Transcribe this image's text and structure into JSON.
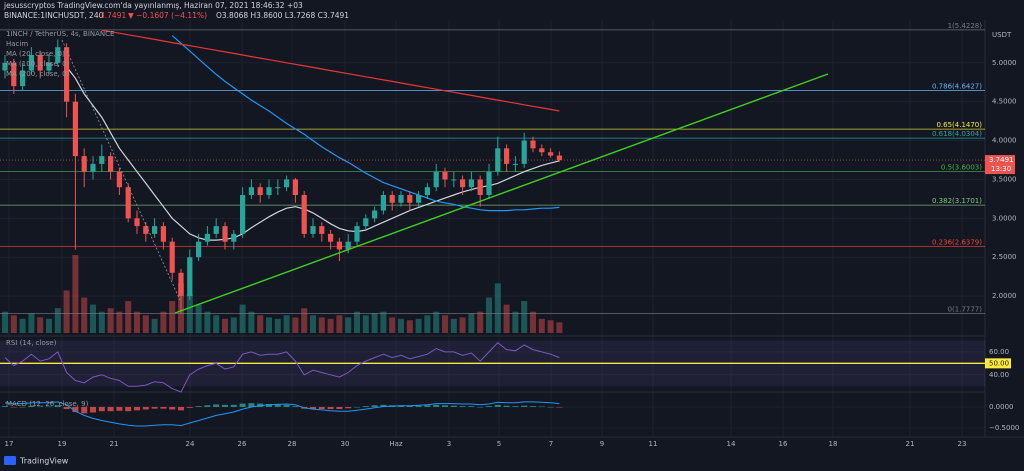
{
  "header": {
    "author_line": "jesusscryptos TradingView.com'da yayınlanmış, Haziran 07, 2021 18:46:32 +03",
    "symbol_line": "BINANCE:1INCHUSDT, 240",
    "last": "3.7491",
    "change": "▼ −0.1607 (−4.11%)",
    "ohlc": "O3.8068 H3.8600 L3.7268 C3.7491"
  },
  "legend": [
    "1INCH / TetherUS, 4s, BINANCE",
    "Hacim",
    "MA (20, close, 0)",
    "MA (100, close, 0)",
    "MA (200, close, 0)"
  ],
  "footer": "TradingView",
  "chart_data": {
    "type": "candlestick",
    "currency": "USDT",
    "ylim": [
      1.5,
      5.55
    ],
    "yticks": [
      {
        "value": 5,
        "label": "5.0000"
      },
      {
        "value": 4.5,
        "label": "4.5000"
      },
      {
        "value": 4,
        "label": "4.0000"
      },
      {
        "value": 3.5,
        "label": "3.5000"
      },
      {
        "value": 3,
        "label": "3.0000"
      },
      {
        "value": 2.5,
        "label": "2.5000"
      },
      {
        "value": 2,
        "label": "2.0000"
      }
    ],
    "xtick_labels": [
      "17",
      "19",
      "21",
      "24",
      "26",
      "28",
      "30",
      "Haz",
      "3",
      "5",
      "7",
      "9",
      "11",
      "14",
      "16",
      "18",
      "21",
      "23"
    ],
    "up_color": "#26a69a",
    "down_color": "#ef5350",
    "candles": [
      {
        "o": 4.9,
        "h": 5.1,
        "l": 4.8,
        "c": 5.0
      },
      {
        "o": 5.0,
        "h": 5.05,
        "l": 4.6,
        "c": 4.7
      },
      {
        "o": 4.7,
        "h": 5.0,
        "l": 4.65,
        "c": 4.9
      },
      {
        "o": 4.9,
        "h": 5.2,
        "l": 4.85,
        "c": 5.1
      },
      {
        "o": 5.1,
        "h": 5.15,
        "l": 4.8,
        "c": 4.9
      },
      {
        "o": 4.9,
        "h": 5.1,
        "l": 4.85,
        "c": 5.0
      },
      {
        "o": 5.0,
        "h": 5.3,
        "l": 4.95,
        "c": 5.2
      },
      {
        "o": 5.2,
        "h": 5.25,
        "l": 4.3,
        "c": 4.5
      },
      {
        "o": 4.5,
        "h": 4.6,
        "l": 2.6,
        "c": 3.8
      },
      {
        "o": 3.8,
        "h": 3.9,
        "l": 3.4,
        "c": 3.6
      },
      {
        "o": 3.6,
        "h": 3.8,
        "l": 3.5,
        "c": 3.7
      },
      {
        "o": 3.7,
        "h": 3.95,
        "l": 3.6,
        "c": 3.8
      },
      {
        "o": 3.8,
        "h": 3.85,
        "l": 3.5,
        "c": 3.6
      },
      {
        "o": 3.6,
        "h": 3.65,
        "l": 3.3,
        "c": 3.4
      },
      {
        "o": 3.4,
        "h": 3.45,
        "l": 2.95,
        "c": 3.0
      },
      {
        "o": 3.0,
        "h": 3.1,
        "l": 2.8,
        "c": 2.9
      },
      {
        "o": 2.9,
        "h": 2.95,
        "l": 2.7,
        "c": 2.8
      },
      {
        "o": 2.8,
        "h": 3.0,
        "l": 2.75,
        "c": 2.9
      },
      {
        "o": 2.9,
        "h": 2.95,
        "l": 2.6,
        "c": 2.7
      },
      {
        "o": 2.7,
        "h": 2.75,
        "l": 2.2,
        "c": 2.3
      },
      {
        "o": 2.3,
        "h": 2.35,
        "l": 1.78,
        "c": 2.0
      },
      {
        "o": 2.0,
        "h": 2.6,
        "l": 1.95,
        "c": 2.5
      },
      {
        "o": 2.5,
        "h": 2.8,
        "l": 2.45,
        "c": 2.7
      },
      {
        "o": 2.7,
        "h": 2.9,
        "l": 2.65,
        "c": 2.8
      },
      {
        "o": 2.8,
        "h": 3.0,
        "l": 2.75,
        "c": 2.9
      },
      {
        "o": 2.9,
        "h": 2.95,
        "l": 2.6,
        "c": 2.7
      },
      {
        "o": 2.7,
        "h": 2.85,
        "l": 2.6,
        "c": 2.8
      },
      {
        "o": 2.8,
        "h": 3.4,
        "l": 2.75,
        "c": 3.3
      },
      {
        "o": 3.3,
        "h": 3.5,
        "l": 3.25,
        "c": 3.4
      },
      {
        "o": 3.4,
        "h": 3.45,
        "l": 3.2,
        "c": 3.3
      },
      {
        "o": 3.3,
        "h": 3.5,
        "l": 3.25,
        "c": 3.4
      },
      {
        "o": 3.4,
        "h": 3.5,
        "l": 3.3,
        "c": 3.4
      },
      {
        "o": 3.4,
        "h": 3.55,
        "l": 3.35,
        "c": 3.5
      },
      {
        "o": 3.5,
        "h": 3.52,
        "l": 3.2,
        "c": 3.3
      },
      {
        "o": 3.3,
        "h": 3.35,
        "l": 2.75,
        "c": 2.8
      },
      {
        "o": 2.8,
        "h": 3.0,
        "l": 2.75,
        "c": 2.9
      },
      {
        "o": 2.9,
        "h": 2.95,
        "l": 2.7,
        "c": 2.8
      },
      {
        "o": 2.8,
        "h": 2.85,
        "l": 2.6,
        "c": 2.7
      },
      {
        "o": 2.7,
        "h": 2.75,
        "l": 2.45,
        "c": 2.6
      },
      {
        "o": 2.6,
        "h": 2.8,
        "l": 2.55,
        "c": 2.7
      },
      {
        "o": 2.7,
        "h": 2.95,
        "l": 2.65,
        "c": 2.9
      },
      {
        "o": 2.9,
        "h": 3.05,
        "l": 2.85,
        "c": 3.0
      },
      {
        "o": 3.0,
        "h": 3.15,
        "l": 2.95,
        "c": 3.1
      },
      {
        "o": 3.1,
        "h": 3.35,
        "l": 3.05,
        "c": 3.3
      },
      {
        "o": 3.3,
        "h": 3.35,
        "l": 3.1,
        "c": 3.2
      },
      {
        "o": 3.2,
        "h": 3.35,
        "l": 3.15,
        "c": 3.3
      },
      {
        "o": 3.3,
        "h": 3.35,
        "l": 3.1,
        "c": 3.2
      },
      {
        "o": 3.2,
        "h": 3.35,
        "l": 3.15,
        "c": 3.3
      },
      {
        "o": 3.3,
        "h": 3.45,
        "l": 3.25,
        "c": 3.4
      },
      {
        "o": 3.4,
        "h": 3.7,
        "l": 3.35,
        "c": 3.6
      },
      {
        "o": 3.6,
        "h": 3.65,
        "l": 3.4,
        "c": 3.5
      },
      {
        "o": 3.5,
        "h": 3.6,
        "l": 3.4,
        "c": 3.5
      },
      {
        "o": 3.5,
        "h": 3.55,
        "l": 3.3,
        "c": 3.4
      },
      {
        "o": 3.4,
        "h": 3.6,
        "l": 3.35,
        "c": 3.5
      },
      {
        "o": 3.5,
        "h": 3.55,
        "l": 3.15,
        "c": 3.3
      },
      {
        "o": 3.3,
        "h": 3.7,
        "l": 3.25,
        "c": 3.6
      },
      {
        "o": 3.6,
        "h": 4.05,
        "l": 3.55,
        "c": 3.9
      },
      {
        "o": 3.9,
        "h": 3.95,
        "l": 3.6,
        "c": 3.7
      },
      {
        "o": 3.7,
        "h": 3.8,
        "l": 3.6,
        "c": 3.7
      },
      {
        "o": 3.7,
        "h": 4.1,
        "l": 3.65,
        "c": 4.0
      },
      {
        "o": 4.0,
        "h": 4.05,
        "l": 3.85,
        "c": 3.9
      },
      {
        "o": 3.9,
        "h": 3.95,
        "l": 3.8,
        "c": 3.85
      },
      {
        "o": 3.85,
        "h": 3.9,
        "l": 3.78,
        "c": 3.8068
      },
      {
        "o": 3.8068,
        "h": 3.86,
        "l": 3.7268,
        "c": 3.7491
      }
    ],
    "volume": [
      30,
      25,
      20,
      28,
      22,
      20,
      35,
      60,
      110,
      50,
      40,
      30,
      35,
      30,
      45,
      30,
      25,
      20,
      30,
      45,
      70,
      55,
      40,
      30,
      25,
      20,
      22,
      40,
      30,
      25,
      22,
      20,
      25,
      22,
      35,
      25,
      22,
      20,
      25,
      22,
      30,
      25,
      28,
      30,
      22,
      20,
      18,
      20,
      25,
      30,
      25,
      20,
      22,
      28,
      30,
      50,
      70,
      40,
      30,
      45,
      30,
      20,
      18,
      15
    ],
    "moving_averages": [
      {
        "name": "MA (20, close, 0)",
        "color": "#d1d4dc",
        "values": [
          null,
          null,
          null,
          null,
          null,
          null,
          null,
          4.95,
          4.8,
          4.6,
          4.45,
          4.3,
          4.1,
          3.9,
          3.75,
          3.6,
          3.45,
          3.3,
          3.15,
          3.0,
          2.9,
          2.8,
          2.75,
          2.72,
          2.72,
          2.73,
          2.75,
          2.8,
          2.88,
          2.95,
          3.02,
          3.08,
          3.13,
          3.15,
          3.12,
          3.07,
          3.0,
          2.93,
          2.87,
          2.84,
          2.83,
          2.85,
          2.9,
          2.95,
          3.0,
          3.05,
          3.1,
          3.14,
          3.18,
          3.22,
          3.26,
          3.3,
          3.34,
          3.37,
          3.4,
          3.42,
          3.45,
          3.5,
          3.55,
          3.6,
          3.64,
          3.68,
          3.71,
          3.74
        ]
      },
      {
        "name": "MA (100, close, 0)",
        "color": "#2196f3",
        "values": [
          null,
          null,
          null,
          null,
          null,
          null,
          null,
          null,
          null,
          null,
          null,
          null,
          null,
          null,
          null,
          null,
          null,
          null,
          null,
          5.35,
          5.25,
          5.15,
          5.05,
          4.95,
          4.85,
          4.76,
          4.68,
          4.6,
          4.52,
          4.45,
          4.38,
          4.3,
          4.22,
          4.15,
          4.08,
          4.0,
          3.92,
          3.85,
          3.78,
          3.72,
          3.65,
          3.58,
          3.52,
          3.46,
          3.42,
          3.38,
          3.34,
          3.3,
          3.26,
          3.22,
          3.2,
          3.18,
          3.15,
          3.13,
          3.11,
          3.1,
          3.1,
          3.1,
          3.11,
          3.11,
          3.12,
          3.13,
          3.13,
          3.14
        ]
      },
      {
        "name": "MA (200, close, 0)",
        "color": "#e53935",
        "values": [
          null,
          null,
          null,
          null,
          null,
          null,
          null,
          null,
          null,
          null,
          null,
          5.42,
          5.4,
          5.38,
          5.36,
          5.34,
          5.32,
          5.3,
          5.28,
          5.26,
          5.24,
          5.22,
          5.2,
          5.18,
          5.16,
          5.14,
          5.12,
          5.1,
          5.08,
          5.06,
          5.04,
          5.02,
          5.0,
          4.98,
          4.96,
          4.94,
          4.92,
          4.9,
          4.88,
          4.86,
          4.84,
          4.82,
          4.8,
          4.78,
          4.76,
          4.74,
          4.72,
          4.7,
          4.68,
          4.66,
          4.64,
          4.62,
          4.6,
          4.58,
          4.56,
          4.54,
          4.52,
          4.5,
          4.48,
          4.46,
          4.44,
          4.42,
          4.4,
          4.38
        ]
      }
    ],
    "fib_levels": [
      {
        "value": 5.4228,
        "label": "1(5.4228)",
        "color": "#787b86"
      },
      {
        "value": 4.6427,
        "label": "0.786(4.6427)",
        "color": "#64b5f6"
      },
      {
        "value": 4.147,
        "label": "0.65(4.1470)",
        "color": "#ffeb3b"
      },
      {
        "value": 4.0304,
        "label": "0.618(4.0304)",
        "color": "#26a69a"
      },
      {
        "value": 3.6003,
        "label": "0.5(3.6003)",
        "color": "#4caf50"
      },
      {
        "value": 3.1701,
        "label": "0.382(3.1701)",
        "color": "#81c784"
      },
      {
        "value": 2.6379,
        "label": "0.236(2.6379)",
        "color": "#f44336"
      },
      {
        "value": 1.7777,
        "label": "0(1.7777)",
        "color": "#787b86"
      }
    ],
    "price_tag": {
      "value": 3.7491,
      "label": "3.7491"
    },
    "countdown": "13:30",
    "rsi": {
      "title": "RSI (14, close)",
      "color": "#7e57c2",
      "ylim": [
        25,
        73
      ],
      "yticks": [
        {
          "value": 60,
          "label": "60.00"
        },
        {
          "value": 50,
          "label": "50.00"
        },
        {
          "value": 40,
          "label": "40.00"
        }
      ],
      "values": [
        55,
        48,
        52,
        58,
        52,
        54,
        60,
        42,
        35,
        33,
        38,
        40,
        37,
        35,
        30,
        30,
        31,
        34,
        33,
        28,
        25,
        40,
        45,
        48,
        50,
        45,
        47,
        58,
        60,
        57,
        58,
        58,
        60,
        52,
        40,
        44,
        42,
        40,
        38,
        42,
        48,
        52,
        55,
        58,
        55,
        57,
        54,
        56,
        58,
        63,
        60,
        60,
        57,
        59,
        52,
        60,
        68,
        62,
        61,
        66,
        62,
        60,
        58,
        55
      ]
    },
    "macd": {
      "title": "MACD (12, 26, close, 9)",
      "ylim": [
        -0.71,
        0.33
      ],
      "yticks": [
        {
          "value": 0,
          "label": "0.0000"
        },
        {
          "value": -0.5,
          "label": "−0.5000"
        }
      ],
      "line_color": "#2196f3",
      "line": [
        0.1,
        0.08,
        0.08,
        0.1,
        0.1,
        0.1,
        0.12,
        0.05,
        -0.1,
        -0.2,
        -0.27,
        -0.32,
        -0.36,
        -0.4,
        -0.43,
        -0.45,
        -0.45,
        -0.43,
        -0.42,
        -0.42,
        -0.44,
        -0.38,
        -0.32,
        -0.26,
        -0.2,
        -0.16,
        -0.12,
        -0.05,
        0,
        0.03,
        0.05,
        0.06,
        0.07,
        0.05,
        -0.02,
        -0.05,
        -0.07,
        -0.09,
        -0.1,
        -0.1,
        -0.08,
        -0.05,
        -0.02,
        0.01,
        0.02,
        0.03,
        0.03,
        0.04,
        0.05,
        0.08,
        0.08,
        0.08,
        0.07,
        0.07,
        0.05,
        0.07,
        0.11,
        0.1,
        0.1,
        0.12,
        0.12,
        0.11,
        0.1,
        0.08
      ],
      "histogram": [
        0.02,
        -0.01,
        0,
        0.03,
        0.01,
        0.01,
        0.04,
        -0.05,
        -0.12,
        -0.15,
        -0.13,
        -0.1,
        -0.1,
        -0.09,
        -0.1,
        -0.08,
        -0.06,
        -0.04,
        -0.04,
        -0.06,
        -0.08,
        -0.02,
        0.02,
        0.04,
        0.06,
        0.05,
        0.05,
        0.08,
        0.09,
        0.08,
        0.07,
        0.06,
        0.05,
        0.02,
        -0.04,
        -0.05,
        -0.05,
        -0.05,
        -0.05,
        -0.03,
        0,
        0.02,
        0.04,
        0.05,
        0.04,
        0.04,
        0.03,
        0.03,
        0.04,
        0.05,
        0.04,
        0.03,
        0.02,
        0.02,
        0,
        0.02,
        0.05,
        0.03,
        0.02,
        0.03,
        0.02,
        0.01,
        0,
        -0.01
      ]
    }
  }
}
